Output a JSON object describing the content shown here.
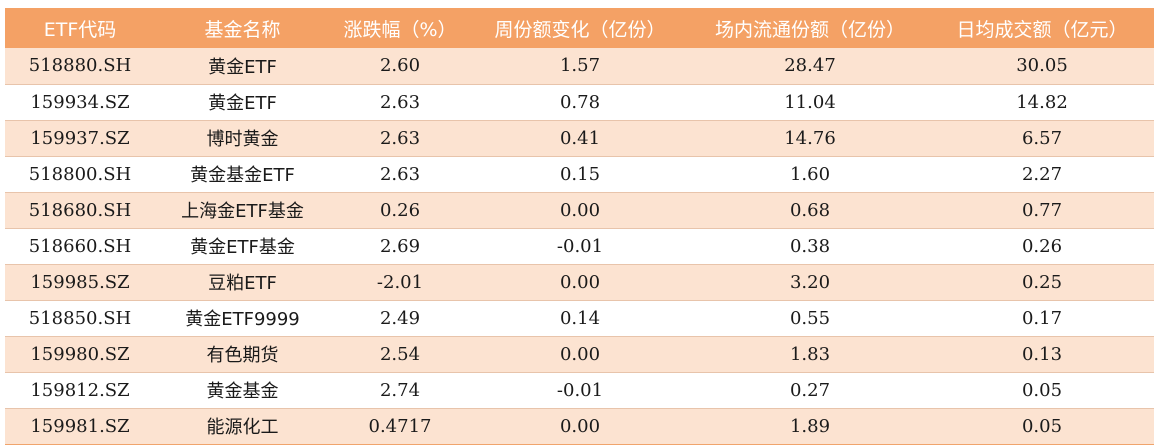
{
  "table": {
    "headers": [
      "ETF代码",
      "基金名称",
      "涨跌幅（%）",
      "周份额变化（亿份）",
      "场内流通份额（亿份）",
      "日均成交额（亿元）"
    ],
    "rows": [
      [
        "518880.SH",
        "黄金ETF",
        "2.60",
        "1.57",
        "28.47",
        "30.05"
      ],
      [
        "159934.SZ",
        "黄金ETF",
        "2.63",
        "0.78",
        "11.04",
        "14.82"
      ],
      [
        "159937.SZ",
        "博时黄金",
        "2.63",
        "0.41",
        "14.76",
        "6.57"
      ],
      [
        "518800.SH",
        "黄金基金ETF",
        "2.63",
        "0.15",
        "1.60",
        "2.27"
      ],
      [
        "518680.SH",
        "上海金ETF基金",
        "0.26",
        "0.00",
        "0.68",
        "0.77"
      ],
      [
        "518660.SH",
        "黄金ETF基金",
        "2.69",
        "-0.01",
        "0.38",
        "0.26"
      ],
      [
        "159985.SZ",
        "豆粕ETF",
        "-2.01",
        "0.00",
        "3.20",
        "0.25"
      ],
      [
        "518850.SH",
        "黄金ETF9999",
        "2.49",
        "0.14",
        "0.55",
        "0.17"
      ],
      [
        "159980.SZ",
        "有色期货",
        "2.54",
        "0.00",
        "1.83",
        "0.13"
      ],
      [
        "159812.SZ",
        "黄金基金",
        "2.74",
        "-0.01",
        "0.27",
        "0.05"
      ],
      [
        "159981.SZ",
        "能源化工",
        "0.4717",
        "0.00",
        "1.89",
        "0.05"
      ]
    ]
  },
  "colors": {
    "header_background": "#f4a165",
    "header_text": "#ffffff",
    "band_row": "#fce3d1",
    "plain_row": "#ffffff"
  }
}
